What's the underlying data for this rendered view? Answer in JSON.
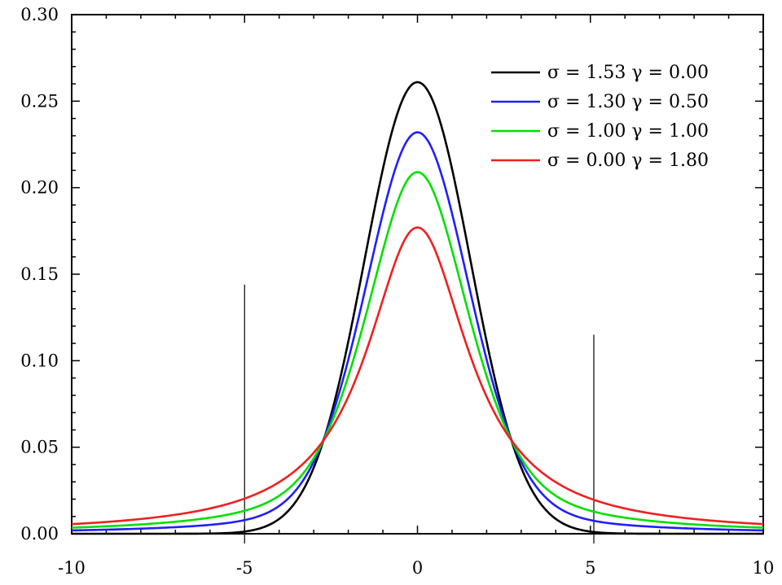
{
  "chart_data": {
    "type": "line",
    "title": "",
    "xlabel": "",
    "ylabel": "",
    "xlim": [
      -10,
      10
    ],
    "ylim": [
      0,
      0.3
    ],
    "x_ticks": [
      -10,
      -5,
      0,
      5,
      10
    ],
    "x_tick_labels": [
      "-10",
      "-5",
      "0",
      "5",
      "10"
    ],
    "y_ticks": [
      0.0,
      0.05,
      0.1,
      0.15,
      0.2,
      0.25,
      0.3
    ],
    "y_tick_labels": [
      "0.00",
      "0.05",
      "0.10",
      "0.15",
      "0.20",
      "0.25",
      "0.30"
    ],
    "grid": false,
    "legend_position": "top-right",
    "series": [
      {
        "name": "σ = 1.53   γ = 0.00",
        "sigma": 1.53,
        "gamma": 0.0,
        "color": "#000000",
        "peak": 0.261
      },
      {
        "name": "σ = 1.30   γ = 0.50",
        "sigma": 1.3,
        "gamma": 0.5,
        "color": "#1f1fff",
        "peak": 0.232
      },
      {
        "name": "σ = 1.00   γ = 1.00",
        "sigma": 1.0,
        "gamma": 1.0,
        "color": "#00e000",
        "peak": 0.209
      },
      {
        "name": "σ = 0.00   γ = 1.80",
        "sigma": 0.0,
        "gamma": 1.8,
        "color": "#ee2020",
        "peak": 0.177
      }
    ],
    "annotations": [
      {
        "type": "vertical-line",
        "x": -5,
        "y_top": 0.144
      },
      {
        "type": "vertical-line",
        "x": 5.1,
        "y_top": 0.115
      }
    ]
  }
}
